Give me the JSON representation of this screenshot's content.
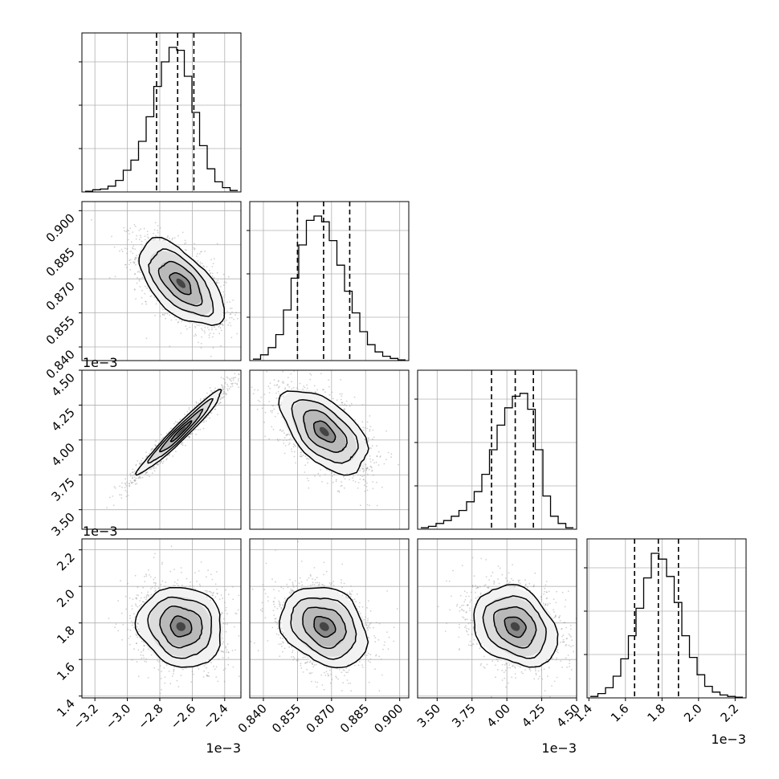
{
  "chart_data": {
    "type": "corner",
    "title": "",
    "grid": true,
    "variables": [
      {
        "ticks": [
          -3.2,
          -3.0,
          -2.8,
          -2.6,
          -2.4
        ],
        "tick_labels": [
          "−3.2",
          "−3.0",
          "−2.8",
          "−2.6",
          "−2.4"
        ],
        "offset_label": "1e−3",
        "range": [
          -3.28,
          -2.3
        ]
      },
      {
        "ticks": [
          0.84,
          0.855,
          0.87,
          0.885,
          0.9
        ],
        "tick_labels": [
          "0.840",
          "0.855",
          "0.870",
          "0.885",
          "0.900"
        ],
        "offset_label": "",
        "range": [
          0.834,
          0.904
        ]
      },
      {
        "ticks": [
          3.5,
          3.75,
          4.0,
          4.25,
          4.5
        ],
        "tick_labels": [
          "3.50",
          "3.75",
          "4.00",
          "4.25",
          "4.50"
        ],
        "offset_label": "1e−3",
        "range": [
          3.36,
          4.5
        ]
      },
      {
        "ticks": [
          1.4,
          1.6,
          1.8,
          2.0,
          2.2
        ],
        "tick_labels": [
          "1.4",
          "1.6",
          "1.8",
          "2.0",
          "2.2"
        ],
        "offset_label": "1e−3",
        "range": [
          1.39,
          2.26
        ]
      }
    ],
    "histograms": [
      {
        "counts": [
          0.5,
          1.5,
          2,
          4,
          8,
          15,
          22,
          35,
          52,
          73,
          90,
          100,
          98,
          80,
          55,
          32,
          16,
          7,
          3,
          1
        ],
        "quantiles": [
          -2.82,
          -2.69,
          -2.59
        ],
        "y_max": 1.1
      },
      {
        "counts": [
          1,
          4,
          9,
          18,
          35,
          57,
          80,
          97,
          100,
          96,
          83,
          66,
          48,
          33,
          20,
          11,
          6,
          3,
          1.5,
          0.5
        ],
        "quantiles": [
          0.855,
          0.8665,
          0.878
        ],
        "y_max": 1.1
      },
      {
        "counts": [
          1,
          2,
          4,
          6,
          9,
          13,
          19,
          26,
          38,
          55,
          72,
          84,
          92,
          94,
          83,
          55,
          23,
          9,
          4,
          1
        ],
        "quantiles": [
          3.89,
          4.06,
          4.19
        ],
        "y_max": 1.1
      },
      {
        "counts": [
          1,
          3,
          7,
          15,
          27,
          43,
          62,
          83,
          100,
          96,
          84,
          66,
          43,
          28,
          16,
          8,
          4,
          2,
          1,
          0.5
        ],
        "quantiles": [
          1.65,
          1.78,
          1.89
        ],
        "y_max": 1.1
      }
    ],
    "pairs": [
      {
        "row": 1,
        "col": 0,
        "mean": [
          -2.67,
          0.868
        ],
        "sd": [
          0.13,
          0.0095
        ],
        "corr": -0.6
      },
      {
        "row": 2,
        "col": 0,
        "mean": [
          -2.67,
          4.06
        ],
        "sd": [
          0.13,
          0.15
        ],
        "corr": 0.97
      },
      {
        "row": 2,
        "col": 1,
        "mean": [
          0.8668,
          4.06
        ],
        "sd": [
          0.0095,
          0.15
        ],
        "corr": -0.55
      },
      {
        "row": 3,
        "col": 0,
        "mean": [
          -2.67,
          1.78
        ],
        "sd": [
          0.13,
          0.11
        ],
        "corr": -0.1
      },
      {
        "row": 3,
        "col": 1,
        "mean": [
          0.8668,
          1.78
        ],
        "sd": [
          0.0095,
          0.11
        ],
        "corr": -0.25
      },
      {
        "row": 3,
        "col": 2,
        "mean": [
          4.06,
          1.78
        ],
        "sd": [
          0.15,
          0.11
        ],
        "corr": -0.25
      }
    ],
    "contour_sigmas": [
      0.5,
      1.0,
      1.5,
      2.0
    ],
    "scatter_points_per_panel": 1800,
    "colors": {
      "line": "#000000",
      "scatter": "#9a9a9a",
      "grid": "#b0b0b0",
      "frame": "#000000"
    }
  }
}
